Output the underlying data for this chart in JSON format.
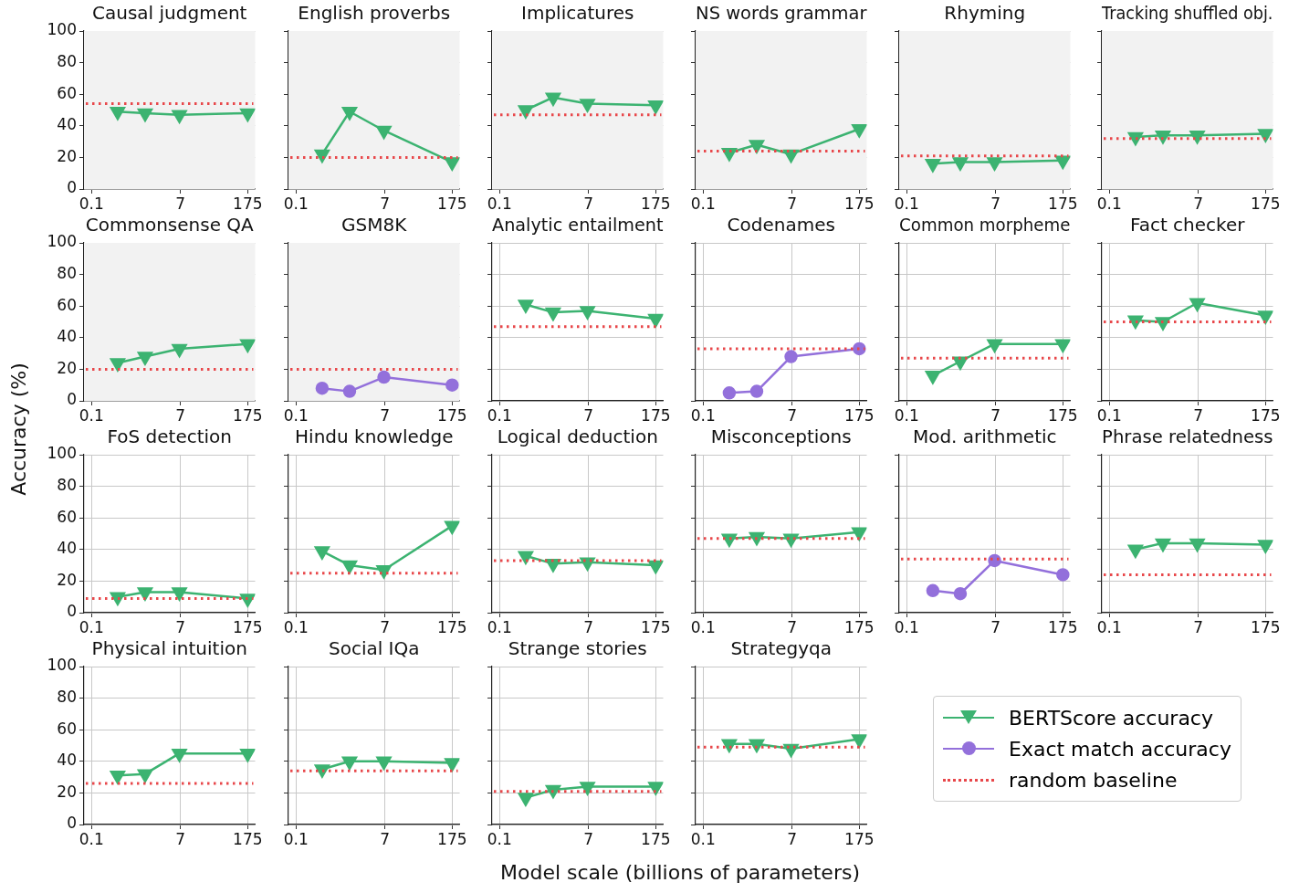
{
  "chart_data": [
    {
      "type": "line",
      "title": "Causal judgment",
      "x": [
        0.35,
        1.3,
        6.7,
        175
      ],
      "series": [
        {
          "name": "BERTScore accuracy",
          "color": "#3cb371",
          "values": [
            49,
            48,
            47,
            48
          ]
        }
      ],
      "log": "x",
      "xlim": [
        0.07,
        250
      ],
      "xticks": [
        0.1,
        7,
        175
      ],
      "ylim": [
        0,
        100
      ],
      "yticks": [
        0,
        20,
        40,
        60,
        80,
        100
      ],
      "grid": true,
      "marker": "triangle",
      "legend": "bottom right",
      "ref_lines": [
        {
          "axis": "y",
          "value": 54,
          "color": "#e8474a",
          "line_style": "dotted"
        }
      ],
      "bands": [
        {
          "axis": "x",
          "from": 0.07,
          "to": 250,
          "color": "#f2f2f2"
        }
      ]
    },
    {
      "type": "line",
      "title": "English proverbs",
      "x": [
        0.35,
        1.3,
        6.7,
        175
      ],
      "series": [
        {
          "name": "BERTScore accuracy",
          "color": "#3cb371",
          "values": [
            22,
            49,
            37,
            17
          ]
        }
      ],
      "log": "x",
      "xlim": [
        0.07,
        250
      ],
      "xticks": [
        0.1,
        7,
        175
      ],
      "ylim": [
        0,
        100
      ],
      "yticks": [
        0,
        20,
        40,
        60,
        80,
        100
      ],
      "tick_labels": "x",
      "grid": true,
      "marker": "triangle",
      "ref_lines": [
        {
          "axis": "y",
          "value": 20,
          "color": "#e8474a",
          "line_style": "dotted"
        }
      ],
      "bands": [
        {
          "axis": "x",
          "from": 0.07,
          "to": 250,
          "color": "#f2f2f2"
        }
      ]
    },
    {
      "type": "line",
      "title": "Implicatures",
      "x": [
        0.35,
        1.3,
        6.7,
        175
      ],
      "series": [
        {
          "name": "BERTScore accuracy",
          "color": "#3cb371",
          "values": [
            50,
            58,
            54,
            53
          ]
        }
      ],
      "log": "x",
      "xlim": [
        0.07,
        250
      ],
      "xticks": [
        0.1,
        7,
        175
      ],
      "ylim": [
        0,
        100
      ],
      "yticks": [
        0,
        20,
        40,
        60,
        80,
        100
      ],
      "tick_labels": "x",
      "grid": true,
      "marker": "triangle",
      "ref_lines": [
        {
          "axis": "y",
          "value": 47,
          "color": "#e8474a",
          "line_style": "dotted"
        }
      ],
      "bands": [
        {
          "axis": "x",
          "from": 0.07,
          "to": 250,
          "color": "#f2f2f2"
        }
      ]
    },
    {
      "type": "line",
      "title": "NS words grammar",
      "x": [
        0.35,
        1.3,
        6.7,
        175
      ],
      "series": [
        {
          "name": "BERTScore accuracy",
          "color": "#3cb371",
          "values": [
            23,
            28,
            22,
            38
          ]
        }
      ],
      "log": "x",
      "xlim": [
        0.07,
        250
      ],
      "xticks": [
        0.1,
        7,
        175
      ],
      "ylim": [
        0,
        100
      ],
      "yticks": [
        0,
        20,
        40,
        60,
        80,
        100
      ],
      "tick_labels": "x",
      "grid": true,
      "marker": "triangle",
      "ref_lines": [
        {
          "axis": "y",
          "value": 24,
          "color": "#e8474a",
          "line_style": "dotted"
        }
      ],
      "bands": [
        {
          "axis": "x",
          "from": 0.07,
          "to": 250,
          "color": "#f2f2f2"
        }
      ]
    },
    {
      "type": "line",
      "title": "Rhyming",
      "x": [
        0.35,
        1.3,
        6.7,
        175
      ],
      "series": [
        {
          "name": "BERTScore accuracy",
          "color": "#3cb371",
          "values": [
            16,
            17,
            17,
            18
          ]
        }
      ],
      "log": "x",
      "xlim": [
        0.07,
        250
      ],
      "xticks": [
        0.1,
        7,
        175
      ],
      "ylim": [
        0,
        100
      ],
      "yticks": [
        0,
        20,
        40,
        60,
        80,
        100
      ],
      "tick_labels": "x",
      "grid": true,
      "marker": "triangle",
      "ref_lines": [
        {
          "axis": "y",
          "value": 21,
          "color": "#e8474a",
          "line_style": "dotted"
        }
      ],
      "bands": [
        {
          "axis": "x",
          "from": 0.07,
          "to": 250,
          "color": "#f2f2f2"
        }
      ]
    },
    {
      "type": "line",
      "title": "Tracking shuffled obj.",
      "x": [
        0.35,
        1.3,
        6.7,
        175
      ],
      "series": [
        {
          "name": "BERTScore accuracy",
          "color": "#3cb371",
          "values": [
            33,
            34,
            34,
            35
          ]
        }
      ],
      "log": "x",
      "xlim": [
        0.07,
        250
      ],
      "xticks": [
        0.1,
        7,
        175
      ],
      "ylim": [
        0,
        100
      ],
      "yticks": [
        0,
        20,
        40,
        60,
        80,
        100
      ],
      "tick_labels": "x",
      "grid": true,
      "marker": "triangle",
      "ref_lines": [
        {
          "axis": "y",
          "value": 32,
          "color": "#e8474a",
          "line_style": "dotted"
        }
      ],
      "bands": [
        {
          "axis": "x",
          "from": 0.07,
          "to": 250,
          "color": "#f2f2f2"
        }
      ]
    },
    {
      "type": "line",
      "title": "Commonsense QA",
      "x": [
        0.35,
        1.3,
        6.7,
        175
      ],
      "series": [
        {
          "name": "BERTScore accuracy",
          "color": "#3cb371",
          "values": [
            24,
            28,
            33,
            36
          ]
        }
      ],
      "log": "x",
      "xlim": [
        0.07,
        250
      ],
      "xticks": [
        0.1,
        7,
        175
      ],
      "ylim": [
        0,
        100
      ],
      "yticks": [
        0,
        20,
        40,
        60,
        80,
        100
      ],
      "grid": true,
      "marker": "triangle",
      "ref_lines": [
        {
          "axis": "y",
          "value": 20,
          "color": "#e8474a",
          "line_style": "dotted"
        }
      ],
      "bands": [
        {
          "axis": "x",
          "from": 0.07,
          "to": 250,
          "color": "#f2f2f2"
        }
      ]
    },
    {
      "type": "line",
      "title": "GSM8K",
      "x": [
        0.35,
        1.3,
        6.7,
        175
      ],
      "series": [
        {
          "name": "Exact match accuracy",
          "color": "#9370db",
          "values": [
            8,
            6,
            15,
            10
          ]
        }
      ],
      "log": "x",
      "xlim": [
        0.07,
        250
      ],
      "xticks": [
        0.1,
        7,
        175
      ],
      "ylim": [
        0,
        100
      ],
      "yticks": [
        0,
        20,
        40,
        60,
        80,
        100
      ],
      "tick_labels": "x",
      "grid": true,
      "marker": "circle",
      "legend": "bottom right",
      "ref_lines": [
        {
          "axis": "y",
          "value": 20,
          "color": "#e8474a",
          "line_style": "dotted"
        }
      ],
      "bands": [
        {
          "axis": "x",
          "from": 0.07,
          "to": 250,
          "color": "#f2f2f2"
        }
      ]
    },
    {
      "type": "line",
      "title": "Analytic entailment",
      "x": [
        0.35,
        1.3,
        6.7,
        175
      ],
      "series": [
        {
          "name": "BERTScore accuracy",
          "color": "#3cb371",
          "values": [
            61,
            56,
            57,
            52
          ]
        }
      ],
      "log": "x",
      "xlim": [
        0.07,
        250
      ],
      "xticks": [
        0.1,
        7,
        175
      ],
      "ylim": [
        0,
        100
      ],
      "yticks": [
        0,
        20,
        40,
        60,
        80,
        100
      ],
      "tick_labels": "x",
      "grid": true,
      "marker": "triangle",
      "ref_lines": [
        {
          "axis": "y",
          "value": 47,
          "color": "#e8474a",
          "line_style": "dotted"
        }
      ]
    },
    {
      "type": "line",
      "title": "Codenames",
      "x": [
        0.35,
        1.3,
        6.7,
        175
      ],
      "series": [
        {
          "name": "Exact match accuracy",
          "color": "#9370db",
          "values": [
            5,
            6,
            28,
            33
          ]
        }
      ],
      "log": "x",
      "xlim": [
        0.07,
        250
      ],
      "xticks": [
        0.1,
        7,
        175
      ],
      "ylim": [
        0,
        100
      ],
      "yticks": [
        0,
        20,
        40,
        60,
        80,
        100
      ],
      "tick_labels": "x",
      "grid": true,
      "marker": "circle",
      "ref_lines": [
        {
          "axis": "y",
          "value": 33,
          "color": "#e8474a",
          "line_style": "dotted"
        }
      ]
    },
    {
      "type": "line",
      "title": "Common morpheme",
      "x": [
        0.35,
        1.3,
        6.7,
        175
      ],
      "series": [
        {
          "name": "BERTScore accuracy",
          "color": "#3cb371",
          "values": [
            16,
            25,
            36,
            36
          ]
        }
      ],
      "log": "x",
      "xlim": [
        0.07,
        250
      ],
      "xticks": [
        0.1,
        7,
        175
      ],
      "ylim": [
        0,
        100
      ],
      "yticks": [
        0,
        20,
        40,
        60,
        80,
        100
      ],
      "tick_labels": "x",
      "grid": true,
      "marker": "triangle",
      "ref_lines": [
        {
          "axis": "y",
          "value": 27,
          "color": "#e8474a",
          "line_style": "dotted"
        }
      ]
    },
    {
      "type": "line",
      "title": "Fact checker",
      "x": [
        0.35,
        1.3,
        6.7,
        175
      ],
      "series": [
        {
          "name": "BERTScore accuracy",
          "color": "#3cb371",
          "values": [
            51,
            50,
            62,
            54
          ]
        }
      ],
      "log": "x",
      "xlim": [
        0.07,
        250
      ],
      "xticks": [
        0.1,
        7,
        175
      ],
      "ylim": [
        0,
        100
      ],
      "yticks": [
        0,
        20,
        40,
        60,
        80,
        100
      ],
      "tick_labels": "x",
      "grid": true,
      "marker": "triangle",
      "ref_lines": [
        {
          "axis": "y",
          "value": 50,
          "color": "#e8474a",
          "line_style": "dotted"
        }
      ]
    },
    {
      "type": "line",
      "title": "FoS detection",
      "ylabel": "Accuracy (%)",
      "x": [
        0.35,
        1.3,
        6.7,
        175
      ],
      "series": [
        {
          "name": "BERTScore accuracy",
          "color": "#3cb371",
          "values": [
            10,
            13,
            13,
            9
          ]
        }
      ],
      "log": "x",
      "xlim": [
        0.07,
        250
      ],
      "xticks": [
        0.1,
        7,
        175
      ],
      "ylim": [
        0,
        100
      ],
      "yticks": [
        0,
        20,
        40,
        60,
        80,
        100
      ],
      "grid": true,
      "marker": "triangle",
      "ref_lines": [
        {
          "axis": "y",
          "value": 9,
          "color": "#e8474a",
          "line_style": "dotted"
        }
      ]
    },
    {
      "type": "line",
      "title": "Hindu knowledge",
      "x": [
        0.35,
        1.3,
        6.7,
        175
      ],
      "series": [
        {
          "name": "BERTScore accuracy",
          "color": "#3cb371",
          "values": [
            39,
            30,
            27,
            55
          ]
        }
      ],
      "log": "x",
      "xlim": [
        0.07,
        250
      ],
      "xticks": [
        0.1,
        7,
        175
      ],
      "ylim": [
        0,
        100
      ],
      "yticks": [
        0,
        20,
        40,
        60,
        80,
        100
      ],
      "tick_labels": "x",
      "grid": true,
      "marker": "triangle",
      "ref_lines": [
        {
          "axis": "y",
          "value": 25,
          "color": "#e8474a",
          "line_style": "dotted"
        }
      ]
    },
    {
      "type": "line",
      "title": "Logical deduction",
      "x": [
        0.35,
        1.3,
        6.7,
        175
      ],
      "series": [
        {
          "name": "BERTScore accuracy",
          "color": "#3cb371",
          "values": [
            36,
            31,
            32,
            30
          ]
        }
      ],
      "log": "x",
      "xlim": [
        0.07,
        250
      ],
      "xticks": [
        0.1,
        7,
        175
      ],
      "ylim": [
        0,
        100
      ],
      "yticks": [
        0,
        20,
        40,
        60,
        80,
        100
      ],
      "tick_labels": "x",
      "grid": true,
      "marker": "triangle",
      "ref_lines": [
        {
          "axis": "y",
          "value": 33,
          "color": "#e8474a",
          "line_style": "dotted"
        }
      ]
    },
    {
      "type": "line",
      "title": "Misconceptions",
      "x": [
        0.35,
        1.3,
        6.7,
        175
      ],
      "series": [
        {
          "name": "BERTScore accuracy",
          "color": "#3cb371",
          "values": [
            47,
            48,
            47,
            51
          ]
        }
      ],
      "log": "x",
      "xlim": [
        0.07,
        250
      ],
      "xticks": [
        0.1,
        7,
        175
      ],
      "ylim": [
        0,
        100
      ],
      "yticks": [
        0,
        20,
        40,
        60,
        80,
        100
      ],
      "tick_labels": "x",
      "grid": true,
      "marker": "triangle",
      "ref_lines": [
        {
          "axis": "y",
          "value": 47,
          "color": "#e8474a",
          "line_style": "dotted"
        }
      ]
    },
    {
      "type": "line",
      "title": "Mod. arithmetic",
      "x": [
        0.35,
        1.3,
        6.7,
        175
      ],
      "series": [
        {
          "name": "Exact match accuracy",
          "color": "#9370db",
          "values": [
            14,
            12,
            33,
            24
          ]
        }
      ],
      "log": "x",
      "xlim": [
        0.07,
        250
      ],
      "xticks": [
        0.1,
        7,
        175
      ],
      "ylim": [
        0,
        100
      ],
      "yticks": [
        0,
        20,
        40,
        60,
        80,
        100
      ],
      "tick_labels": "x",
      "grid": true,
      "marker": "circle",
      "ref_lines": [
        {
          "axis": "y",
          "value": 34,
          "color": "#e8474a",
          "line_style": "dotted"
        }
      ]
    },
    {
      "type": "line",
      "title": "Phrase relatedness",
      "x": [
        0.35,
        1.3,
        6.7,
        175
      ],
      "series": [
        {
          "name": "BERTScore accuracy",
          "color": "#3cb371",
          "values": [
            40,
            44,
            44,
            43
          ]
        }
      ],
      "log": "x",
      "xlim": [
        0.07,
        250
      ],
      "xticks": [
        0.1,
        7,
        175
      ],
      "ylim": [
        0,
        100
      ],
      "yticks": [
        0,
        20,
        40,
        60,
        80,
        100
      ],
      "tick_labels": "x",
      "grid": true,
      "marker": "triangle",
      "ref_lines": [
        {
          "axis": "y",
          "value": 24,
          "color": "#e8474a",
          "line_style": "dotted"
        }
      ]
    },
    {
      "type": "line",
      "title": "Physical intuition",
      "x": [
        0.35,
        1.3,
        6.7,
        175
      ],
      "series": [
        {
          "name": "BERTScore accuracy",
          "color": "#3cb371",
          "values": [
            31,
            32,
            45,
            45
          ]
        }
      ],
      "log": "x",
      "xlim": [
        0.07,
        250
      ],
      "xticks": [
        0.1,
        7,
        175
      ],
      "ylim": [
        0,
        100
      ],
      "yticks": [
        0,
        20,
        40,
        60,
        80,
        100
      ],
      "grid": true,
      "marker": "triangle",
      "ref_lines": [
        {
          "axis": "y",
          "value": 26,
          "color": "#e8474a",
          "line_style": "dotted"
        }
      ]
    },
    {
      "type": "line",
      "title": "Social IQa",
      "x": [
        0.35,
        1.3,
        6.7,
        175
      ],
      "series": [
        {
          "name": "BERTScore accuracy",
          "color": "#3cb371",
          "values": [
            35,
            40,
            40,
            39
          ]
        }
      ],
      "log": "x",
      "xlim": [
        0.07,
        250
      ],
      "xticks": [
        0.1,
        7,
        175
      ],
      "ylim": [
        0,
        100
      ],
      "yticks": [
        0,
        20,
        40,
        60,
        80,
        100
      ],
      "tick_labels": "x",
      "grid": true,
      "marker": "triangle",
      "ref_lines": [
        {
          "axis": "y",
          "value": 34,
          "color": "#e8474a",
          "line_style": "dotted"
        }
      ]
    },
    {
      "type": "line",
      "title": "Strange stories",
      "xlabel": "Model scale (billions of parameters)",
      "x": [
        0.35,
        1.3,
        6.7,
        175
      ],
      "series": [
        {
          "name": "BERTScore accuracy",
          "color": "#3cb371",
          "values": [
            17,
            22,
            24,
            24
          ]
        }
      ],
      "log": "x",
      "xlim": [
        0.07,
        250
      ],
      "xticks": [
        0.1,
        7,
        175
      ],
      "ylim": [
        0,
        100
      ],
      "yticks": [
        0,
        20,
        40,
        60,
        80,
        100
      ],
      "tick_labels": "x",
      "grid": true,
      "marker": "triangle",
      "ref_lines": [
        {
          "axis": "y",
          "value": 21,
          "color": "#e8474a",
          "line_style": "dotted"
        }
      ]
    },
    {
      "type": "line",
      "title": "Strategyqa",
      "x": [
        0.35,
        1.3,
        6.7,
        175
      ],
      "series": [
        {
          "name": "BERTScore accuracy",
          "color": "#3cb371",
          "values": [
            51,
            51,
            48,
            54
          ]
        }
      ],
      "log": "x",
      "xlim": [
        0.07,
        250
      ],
      "xticks": [
        0.1,
        7,
        175
      ],
      "ylim": [
        0,
        100
      ],
      "yticks": [
        0,
        20,
        40,
        60,
        80,
        100
      ],
      "tick_labels": "x",
      "grid": true,
      "marker": "triangle",
      "legend": "bottom right",
      "ref_lines": [
        {
          "axis": "y",
          "value": 49,
          "label": "random baseline",
          "color": "#e8474a",
          "line_style": "dotted"
        }
      ]
    }
  ]
}
